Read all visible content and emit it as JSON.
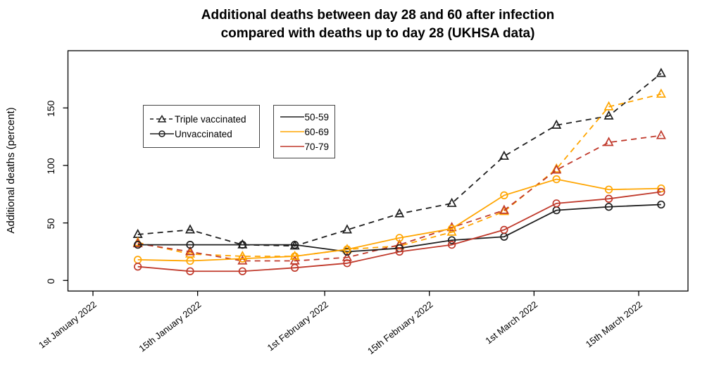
{
  "title": {
    "line1": "Additional deaths between day 28 and 60 after infection",
    "line2": "compared with deaths up to day 28 (UKHSA data)"
  },
  "y_axis": {
    "label": "Additional deaths (percent)",
    "ticks": [
      0,
      50,
      100,
      150
    ],
    "range": [
      0,
      200
    ]
  },
  "x_axis": {
    "ticks": [
      {
        "label": "1st January 2022",
        "day": 0
      },
      {
        "label": "15th January 2022",
        "day": 14
      },
      {
        "label": "1st February 2022",
        "day": 31
      },
      {
        "label": "15th February 2022",
        "day": 45
      },
      {
        "label": "1st March 2022",
        "day": 59
      },
      {
        "label": "15th March 2022",
        "day": 73
      }
    ]
  },
  "legends": {
    "status": {
      "items": [
        {
          "label": "Triple vaccinated",
          "marker": "triangle",
          "style": "dashed",
          "color": "#1f1f1f"
        },
        {
          "label": "Unvaccinated",
          "marker": "circle",
          "style": "solid",
          "color": "#1f1f1f"
        }
      ]
    },
    "age": {
      "items": [
        {
          "label": "50-59",
          "color": "#1f1f1f"
        },
        {
          "label": "60-69",
          "color": "#FFA500"
        },
        {
          "label": "70-79",
          "color": "#C0392B"
        }
      ]
    }
  },
  "chart_data": {
    "type": "line",
    "title": "Additional deaths between day 28 and 60 after infection compared with deaths up to day 28 (UKHSA data)",
    "ylabel": "Additional deaths (percent)",
    "ylim": [
      0,
      200
    ],
    "grid": false,
    "x_dates": [
      "2022-01-07",
      "2022-01-14",
      "2022-01-21",
      "2022-01-28",
      "2022-02-04",
      "2022-02-11",
      "2022-02-18",
      "2022-02-25",
      "2022-03-04",
      "2022-03-11",
      "2022-03-18"
    ],
    "x_days_after_jan1": [
      6,
      13,
      20,
      27,
      34,
      41,
      48,
      55,
      62,
      69,
      76
    ],
    "series": [
      {
        "name": "Triple vaccinated 50-59",
        "group": "Triple vaccinated",
        "age": "50-59",
        "color": "#1f1f1f",
        "style": "dashed",
        "marker": "triangle",
        "values": [
          40,
          44,
          31,
          30,
          44,
          58,
          67,
          108,
          135,
          143,
          180
        ]
      },
      {
        "name": "Triple vaccinated 60-69",
        "group": "Triple vaccinated",
        "age": "60-69",
        "color": "#FFA500",
        "style": "dashed",
        "marker": "triangle",
        "values": [
          33,
          23,
          21,
          21,
          27,
          30,
          42,
          60,
          97,
          151,
          162
        ]
      },
      {
        "name": "Triple vaccinated 70-79",
        "group": "Triple vaccinated",
        "age": "70-79",
        "color": "#C0392B",
        "style": "dashed",
        "marker": "triangle",
        "values": [
          32,
          25,
          17,
          17,
          20,
          31,
          46,
          61,
          96,
          120,
          126
        ]
      },
      {
        "name": "Unvaccinated 50-59",
        "group": "Unvaccinated",
        "age": "50-59",
        "color": "#1f1f1f",
        "style": "solid",
        "marker": "circle",
        "values": [
          31,
          31,
          31,
          31,
          25,
          28,
          35,
          38,
          61,
          64,
          66
        ]
      },
      {
        "name": "Unvaccinated 60-69",
        "group": "Unvaccinated",
        "age": "60-69",
        "color": "#FFA500",
        "style": "solid",
        "marker": "circle",
        "values": [
          18,
          17,
          19,
          21,
          27,
          37,
          45,
          74,
          88,
          79,
          80
        ]
      },
      {
        "name": "Unvaccinated 70-79",
        "group": "Unvaccinated",
        "age": "70-79",
        "color": "#C0392B",
        "style": "solid",
        "marker": "circle",
        "values": [
          12,
          8,
          8,
          11,
          15,
          25,
          31,
          44,
          67,
          71,
          77
        ]
      }
    ]
  }
}
